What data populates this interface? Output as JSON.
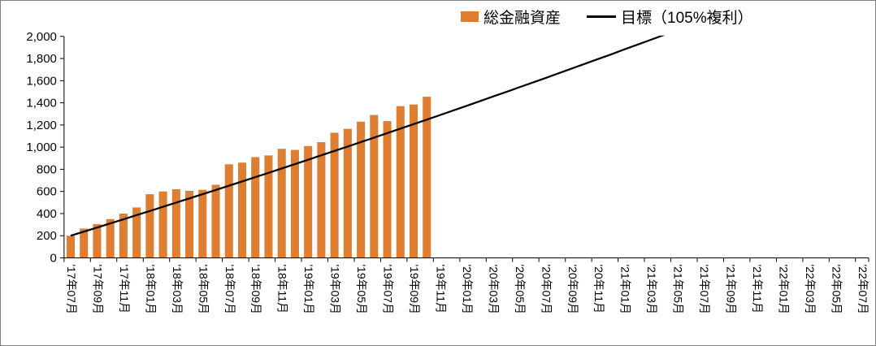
{
  "frame": {
    "background": "#FFFFFF",
    "border_color": "#808080",
    "axis_color": "#000000"
  },
  "chart_data": {
    "type": "bar",
    "title": "",
    "xlabel": "",
    "ylabel": "",
    "ylim": [
      0,
      2000
    ],
    "y_tick_step": 200,
    "y_tick_labels": [
      "0",
      "200",
      "400",
      "600",
      "800",
      "1,000",
      "1,200",
      "1,400",
      "1,600",
      "1,800",
      "2,000"
    ],
    "x_tick_labels": [
      "'17年07月",
      "'17年09月",
      "'17年11月",
      "'18年01月",
      "'18年03月",
      "'18年05月",
      "'18年07月",
      "'18年09月",
      "'18年11月",
      "'19年01月",
      "'19年03月",
      "'19年05月",
      "'19年07月",
      "'19年09月",
      "'19年11月",
      "'20年01月",
      "'20年03月",
      "'20年05月",
      "'20年07月",
      "'20年09月",
      "'20年11月",
      "'21年01月",
      "'21年03月",
      "'21年05月",
      "'21年07月",
      "'21年09月",
      "'21年11月",
      "'22年01月",
      "'22年03月",
      "'22年05月",
      "'22年07月"
    ],
    "x_label_interval": 2,
    "total_months": 61,
    "gridlines": false,
    "legend_position": "top",
    "series": [
      {
        "name": "総金融資産",
        "type": "bar",
        "color": "#DD7E33",
        "start_index": 0,
        "values": [
          200,
          265,
          305,
          350,
          400,
          455,
          575,
          600,
          620,
          605,
          615,
          660,
          845,
          860,
          910,
          925,
          985,
          975,
          1010,
          1045,
          1130,
          1165,
          1230,
          1290,
          1235,
          1370,
          1385,
          1455
        ]
      },
      {
        "name": "目標（105%複利）",
        "type": "line",
        "color": "#000000",
        "start_index": 0,
        "values": [
          200,
          237,
          274,
          311,
          348,
          386,
          423,
          461,
          499,
          537,
          575,
          613,
          652,
          690,
          729,
          768,
          807,
          847,
          886,
          926,
          966,
          1005,
          1046,
          1086,
          1126,
          1167,
          1208,
          1248,
          1290,
          1331,
          1372,
          1414,
          1456,
          1498,
          1540,
          1582,
          1624,
          1667,
          1710,
          1753,
          1796,
          1839,
          1883,
          1926,
          1970,
          2014
        ]
      }
    ]
  }
}
